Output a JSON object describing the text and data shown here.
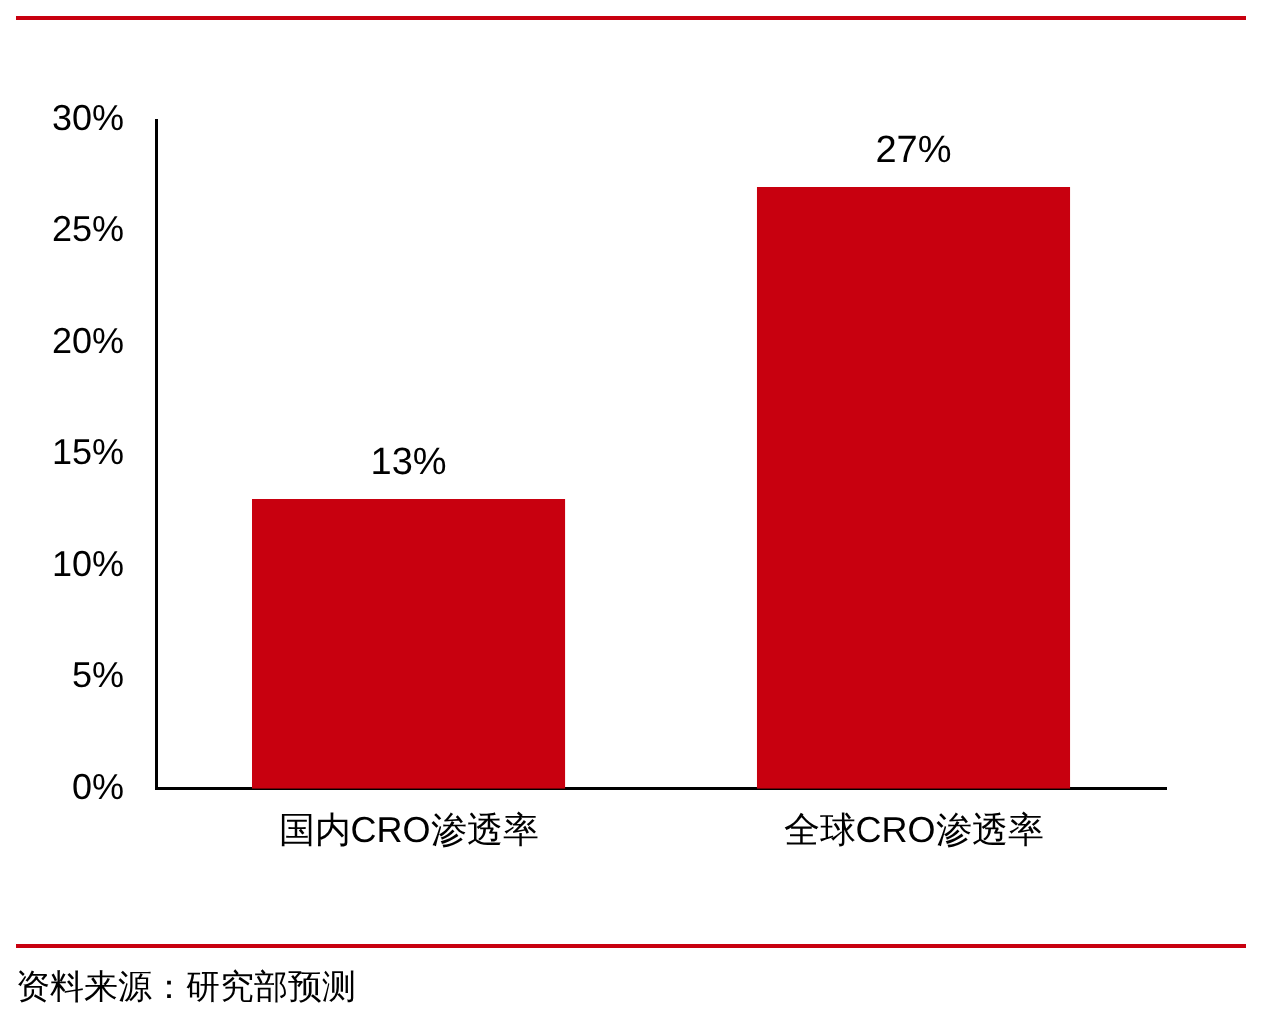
{
  "chart_data": {
    "type": "bar",
    "categories": [
      "国内CRO渗透率",
      "全球CRO渗透率"
    ],
    "values": [
      13,
      27
    ],
    "value_labels": [
      "13%",
      "27%"
    ],
    "color": "#c8000f",
    "grid": false,
    "legend": false,
    "ylim": [
      0,
      30
    ],
    "yticks": [
      {
        "value": 0,
        "label": "0%"
      },
      {
        "value": 5,
        "label": "5%"
      },
      {
        "value": 10,
        "label": "10%"
      },
      {
        "value": 15,
        "label": "15%"
      },
      {
        "value": 20,
        "label": "20%"
      },
      {
        "value": 25,
        "label": "25%"
      },
      {
        "value": 30,
        "label": "30%"
      }
    ],
    "annotations": [
      "资料来源：研究部预测"
    ]
  }
}
